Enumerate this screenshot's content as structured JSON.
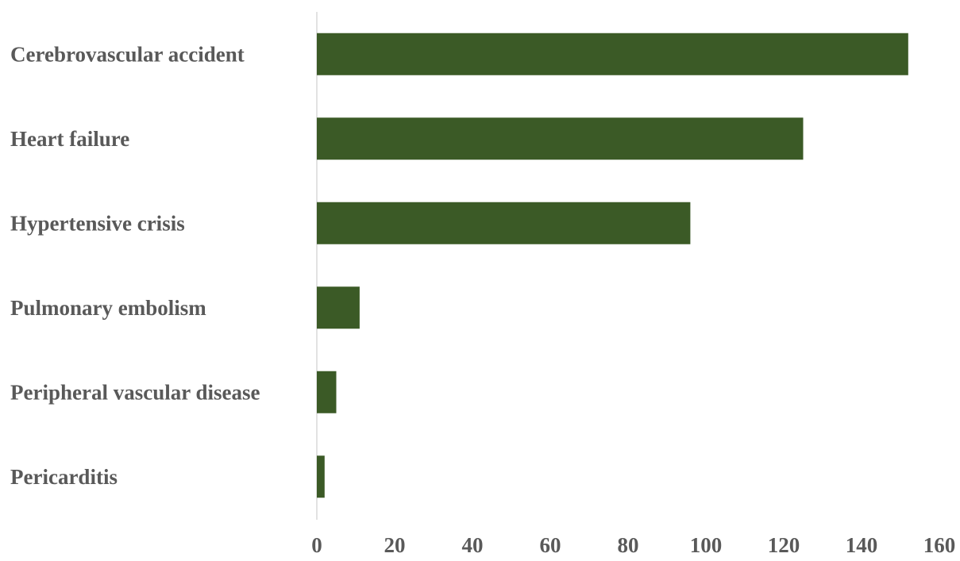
{
  "chart_data": {
    "type": "bar",
    "orientation": "horizontal",
    "categories": [
      "Cerebrovascular accident",
      "Heart failure",
      "Hypertensive crisis",
      "Pulmonary embolism",
      "Peripheral vascular disease",
      "Pericarditis"
    ],
    "values": [
      152,
      125,
      96,
      11,
      5,
      2
    ],
    "xlim": [
      0,
      160
    ],
    "xticks": [
      "0",
      "20",
      "40",
      "60",
      "80",
      "100",
      "120",
      "140",
      "160"
    ],
    "title": "",
    "xlabel": "",
    "ylabel": "",
    "grid": false,
    "legend": "none",
    "bar_color": "#3b5a26",
    "axis_color": "#d9d9d9",
    "text_color": "#595959"
  }
}
